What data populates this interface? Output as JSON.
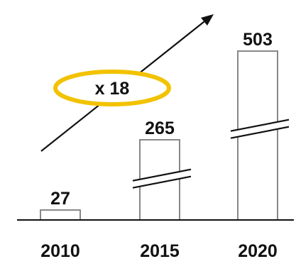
{
  "chart_data": {
    "type": "bar",
    "categories": [
      "2010",
      "2015",
      "2020"
    ],
    "values": [
      27,
      265,
      503
    ],
    "axis_breaks": [
      false,
      true,
      true
    ],
    "annotation": {
      "text": "x 18",
      "ring_color": "#F2C200",
      "arrow": "rising trend arrow"
    },
    "colors": {
      "bar_fill": "#ffffff",
      "bar_stroke": "#888888",
      "baseline": "#111111",
      "text": "#111111"
    }
  }
}
